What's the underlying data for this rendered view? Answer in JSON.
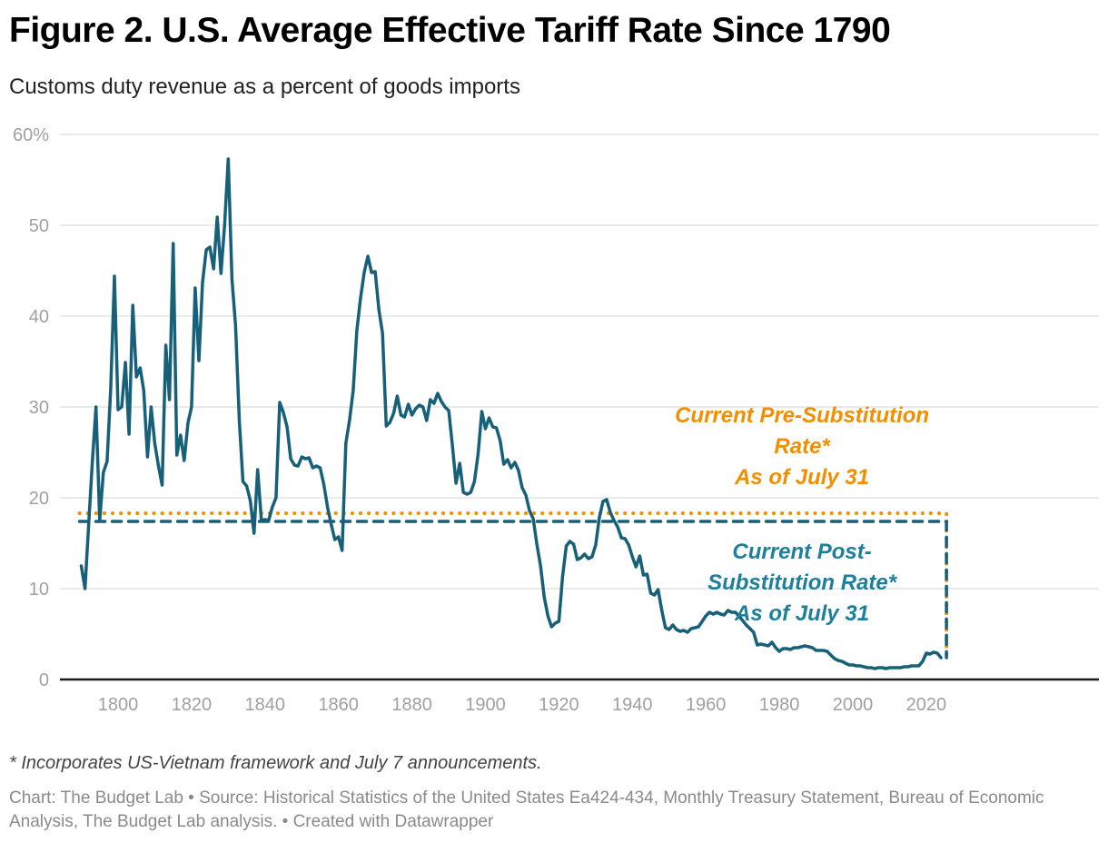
{
  "header": {
    "title": "Figure 2. U.S. Average Effective Tariff Rate Since 1790",
    "subtitle": "Customs duty revenue as a percent of goods imports"
  },
  "footer": {
    "note": "* Incorporates US-Vietnam framework and July 7 announcements.",
    "source": "Chart: The Budget Lab • Source: Historical Statistics of the United States Ea424-434, Monthly Treasury Statement, Bureau of Economic Analysis, The Budget Lab analysis. • Created with Datawrapper"
  },
  "colors": {
    "series": "#17607a",
    "pre_substitution": "#f28e00",
    "post_substitution": "#17607a",
    "post_label": "#1d7f9c",
    "grid": "#e4e4e4",
    "axis": "#1a1a1a",
    "tick_text": "#a0a0a0"
  },
  "chart_data": {
    "type": "line",
    "title": "Figure 2. U.S. Average Effective Tariff Rate Since 1790",
    "subtitle": "Customs duty revenue as a percent of goods imports",
    "xlabel": "",
    "ylabel": "",
    "xlim": [
      1787,
      2026
    ],
    "ylim": [
      0,
      60
    ],
    "grid": true,
    "x_ticks": [
      1800,
      1820,
      1840,
      1860,
      1880,
      1900,
      1920,
      1940,
      1960,
      1980,
      2000,
      2020
    ],
    "y_ticks": [
      {
        "value": 0,
        "label": "0"
      },
      {
        "value": 10,
        "label": "10"
      },
      {
        "value": 20,
        "label": "20"
      },
      {
        "value": 30,
        "label": "30"
      },
      {
        "value": 40,
        "label": "40"
      },
      {
        "value": 50,
        "label": "50"
      },
      {
        "value": 60,
        "label": "60%"
      }
    ],
    "series": [
      {
        "name": "Average effective tariff rate",
        "x": [
          1790,
          1791,
          1792,
          1793,
          1794,
          1795,
          1796,
          1797,
          1798,
          1799,
          1800,
          1801,
          1802,
          1803,
          1804,
          1805,
          1806,
          1807,
          1808,
          1809,
          1810,
          1811,
          1812,
          1813,
          1814,
          1815,
          1816,
          1817,
          1818,
          1819,
          1820,
          1821,
          1822,
          1823,
          1824,
          1825,
          1826,
          1827,
          1828,
          1829,
          1830,
          1831,
          1832,
          1833,
          1834,
          1835,
          1836,
          1837,
          1838,
          1839,
          1840,
          1841,
          1842,
          1843,
          1844,
          1845,
          1846,
          1847,
          1848,
          1849,
          1850,
          1851,
          1852,
          1853,
          1854,
          1855,
          1856,
          1857,
          1858,
          1859,
          1860,
          1861,
          1862,
          1863,
          1864,
          1865,
          1866,
          1867,
          1868,
          1869,
          1870,
          1871,
          1872,
          1873,
          1874,
          1875,
          1876,
          1877,
          1878,
          1879,
          1880,
          1881,
          1882,
          1883,
          1884,
          1885,
          1886,
          1887,
          1888,
          1889,
          1890,
          1891,
          1892,
          1893,
          1894,
          1895,
          1896,
          1897,
          1898,
          1899,
          1900,
          1901,
          1902,
          1903,
          1904,
          1905,
          1906,
          1907,
          1908,
          1909,
          1910,
          1911,
          1912,
          1913,
          1914,
          1915,
          1916,
          1917,
          1918,
          1919,
          1920,
          1921,
          1922,
          1923,
          1924,
          1925,
          1926,
          1927,
          1928,
          1929,
          1930,
          1931,
          1932,
          1933,
          1934,
          1935,
          1936,
          1937,
          1938,
          1939,
          1940,
          1941,
          1942,
          1943,
          1944,
          1945,
          1946,
          1947,
          1948,
          1949,
          1950,
          1951,
          1952,
          1953,
          1954,
          1955,
          1956,
          1957,
          1958,
          1959,
          1960,
          1961,
          1962,
          1963,
          1964,
          1965,
          1966,
          1967,
          1968,
          1969,
          1970,
          1971,
          1972,
          1973,
          1974,
          1975,
          1976,
          1977,
          1978,
          1979,
          1980,
          1981,
          1982,
          1983,
          1984,
          1985,
          1986,
          1987,
          1988,
          1989,
          1990,
          1991,
          1992,
          1993,
          1994,
          1995,
          1996,
          1997,
          1998,
          1999,
          2000,
          2001,
          2002,
          2003,
          2004,
          2005,
          2006,
          2007,
          2008,
          2009,
          2010,
          2011,
          2012,
          2013,
          2014,
          2015,
          2016,
          2017,
          2018,
          2019,
          2020,
          2021,
          2022,
          2023,
          2024
        ],
        "values": [
          12.5,
          10.0,
          17.0,
          24.0,
          30.0,
          17.5,
          22.8,
          24.0,
          32.0,
          44.4,
          29.7,
          30.0,
          34.9,
          27.0,
          41.2,
          33.3,
          34.3,
          31.8,
          24.5,
          30.0,
          26.0,
          23.5,
          21.4,
          36.8,
          30.8,
          48.0,
          24.7,
          26.9,
          24.1,
          28.2,
          30.0,
          43.1,
          35.1,
          43.7,
          47.3,
          47.6,
          45.2,
          50.9,
          44.7,
          50.0,
          57.3,
          44.1,
          38.9,
          28.5,
          21.8,
          21.3,
          19.7,
          16.1,
          23.1,
          17.5,
          17.6,
          17.5,
          19.0,
          20.0,
          30.5,
          29.4,
          27.8,
          24.3,
          23.6,
          23.5,
          24.5,
          24.3,
          24.4,
          23.3,
          23.5,
          23.3,
          21.5,
          19.0,
          17.1,
          15.4,
          15.7,
          14.2,
          26.0,
          28.5,
          31.8,
          38.4,
          42.0,
          44.8,
          46.6,
          44.8,
          44.9,
          40.7,
          38.1,
          27.9,
          28.3,
          29.3,
          31.2,
          29.1,
          28.9,
          30.3,
          29.1,
          29.8,
          30.2,
          30.0,
          28.5,
          30.8,
          30.4,
          31.5,
          30.6,
          30.0,
          29.6,
          25.8,
          21.6,
          23.8,
          20.6,
          20.4,
          20.6,
          21.8,
          24.8,
          29.5,
          27.6,
          28.8,
          27.8,
          27.7,
          26.3,
          23.7,
          24.2,
          23.3,
          23.9,
          23.0,
          21.1,
          20.3,
          18.6,
          17.7,
          14.9,
          12.5,
          9.1,
          7.0,
          5.8,
          6.2,
          6.4,
          11.3,
          14.7,
          15.2,
          14.9,
          13.2,
          13.4,
          13.8,
          13.3,
          13.5,
          14.8,
          17.8,
          19.6,
          19.8,
          18.4,
          17.5,
          16.8,
          15.6,
          15.5,
          14.8,
          13.5,
          12.4,
          13.6,
          11.5,
          11.6,
          9.5,
          9.3,
          9.9,
          7.6,
          5.7,
          5.5,
          6.0,
          5.5,
          5.3,
          5.4,
          5.2,
          5.6,
          5.7,
          5.8,
          6.4,
          7.0,
          7.4,
          7.2,
          7.4,
          7.2,
          7.1,
          7.6,
          7.4,
          7.4,
          7.0,
          6.5,
          6.0,
          5.6,
          5.2,
          3.8,
          3.9,
          3.8,
          3.7,
          4.1,
          3.5,
          3.1,
          3.4,
          3.4,
          3.3,
          3.5,
          3.5,
          3.6,
          3.7,
          3.6,
          3.5,
          3.2,
          3.2,
          3.2,
          3.1,
          2.7,
          2.3,
          2.1,
          2.0,
          1.8,
          1.6,
          1.6,
          1.5,
          1.5,
          1.4,
          1.3,
          1.3,
          1.2,
          1.3,
          1.3,
          1.2,
          1.3,
          1.3,
          1.3,
          1.3,
          1.4,
          1.4,
          1.5,
          1.5,
          1.5,
          2.0,
          2.9,
          2.8,
          3.0,
          2.9,
          2.4
        ]
      }
    ],
    "reference_lines": [
      {
        "name": "Current Pre-Substitution Rate",
        "value": 18.3,
        "style": "dotted",
        "color": "#f28e00",
        "x_start": 1790,
        "x_end": 2025
      },
      {
        "name": "Current Post-Substitution Rate",
        "value": 17.4,
        "style": "dashed",
        "color": "#17607a",
        "x_start": 1790,
        "x_end": 2025
      }
    ],
    "annotations": [
      {
        "name": "pre-substitution-label",
        "lines": [
          "Current Pre-Substitution",
          "Rate*",
          "As of July 31"
        ],
        "color": "#f28e00",
        "x": 1980,
        "y": 29
      },
      {
        "name": "post-substitution-label",
        "lines": [
          "Current Post-",
          "Substitution Rate*",
          "As of July 31"
        ],
        "color": "#1d7f9c",
        "x": 1980,
        "y": 14
      }
    ],
    "legend": "none"
  }
}
